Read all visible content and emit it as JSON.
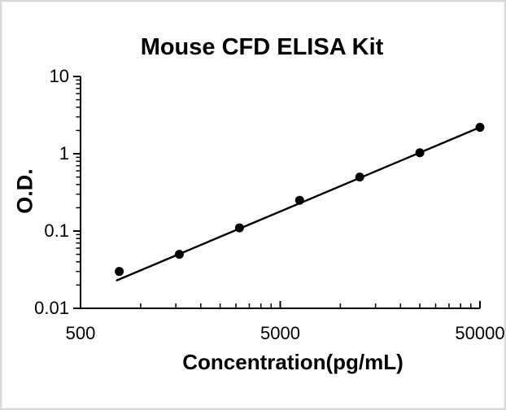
{
  "window": {
    "background": "#ffffff",
    "border_color": "#d9d9d9"
  },
  "chart_data": {
    "type": "scatter",
    "title": "Mouse CFD ELISA Kit",
    "xlabel": "Concentration(pg/mL)",
    "ylabel": "O.D.",
    "x_scale": "log",
    "y_scale": "log",
    "xlim": [
      500,
      50000
    ],
    "ylim": [
      0.01,
      10
    ],
    "grid": false,
    "legend": false,
    "series": [
      {
        "name": "standard-curve-points",
        "x": [
          781.25,
          1562.5,
          3125,
          6250,
          12500,
          25000,
          50000
        ],
        "y": [
          0.03,
          0.05,
          0.11,
          0.25,
          0.5,
          1.03,
          2.2
        ]
      }
    ],
    "fit_line": {
      "x": [
        760,
        50000
      ],
      "y": [
        0.023,
        2.2
      ]
    },
    "x_major_ticks": [
      {
        "value": 500,
        "label": "500"
      },
      {
        "value": 5000,
        "label": "5000"
      },
      {
        "value": 50000,
        "label": "50000"
      }
    ],
    "x_minor_ticks": [
      1000,
      1500,
      2000,
      2500,
      3000,
      3500,
      4000,
      4500,
      10000,
      15000,
      20000,
      25000,
      30000,
      35000,
      40000,
      45000
    ],
    "y_major_ticks": [
      {
        "value": 10,
        "label": "10"
      },
      {
        "value": 1,
        "label": "1"
      },
      {
        "value": 0.1,
        "label": "0.1"
      },
      {
        "value": 0.01,
        "label": "0.01"
      }
    ],
    "y_minor_ticks": [
      9,
      8,
      7,
      6,
      5,
      4,
      3,
      2,
      0.9,
      0.8,
      0.7,
      0.6,
      0.5,
      0.4,
      0.3,
      0.2,
      0.09,
      0.08,
      0.07,
      0.06,
      0.05,
      0.04,
      0.03,
      0.02
    ],
    "marker_color": "#000000",
    "line_color": "#000000",
    "axis_color": "#000000"
  }
}
